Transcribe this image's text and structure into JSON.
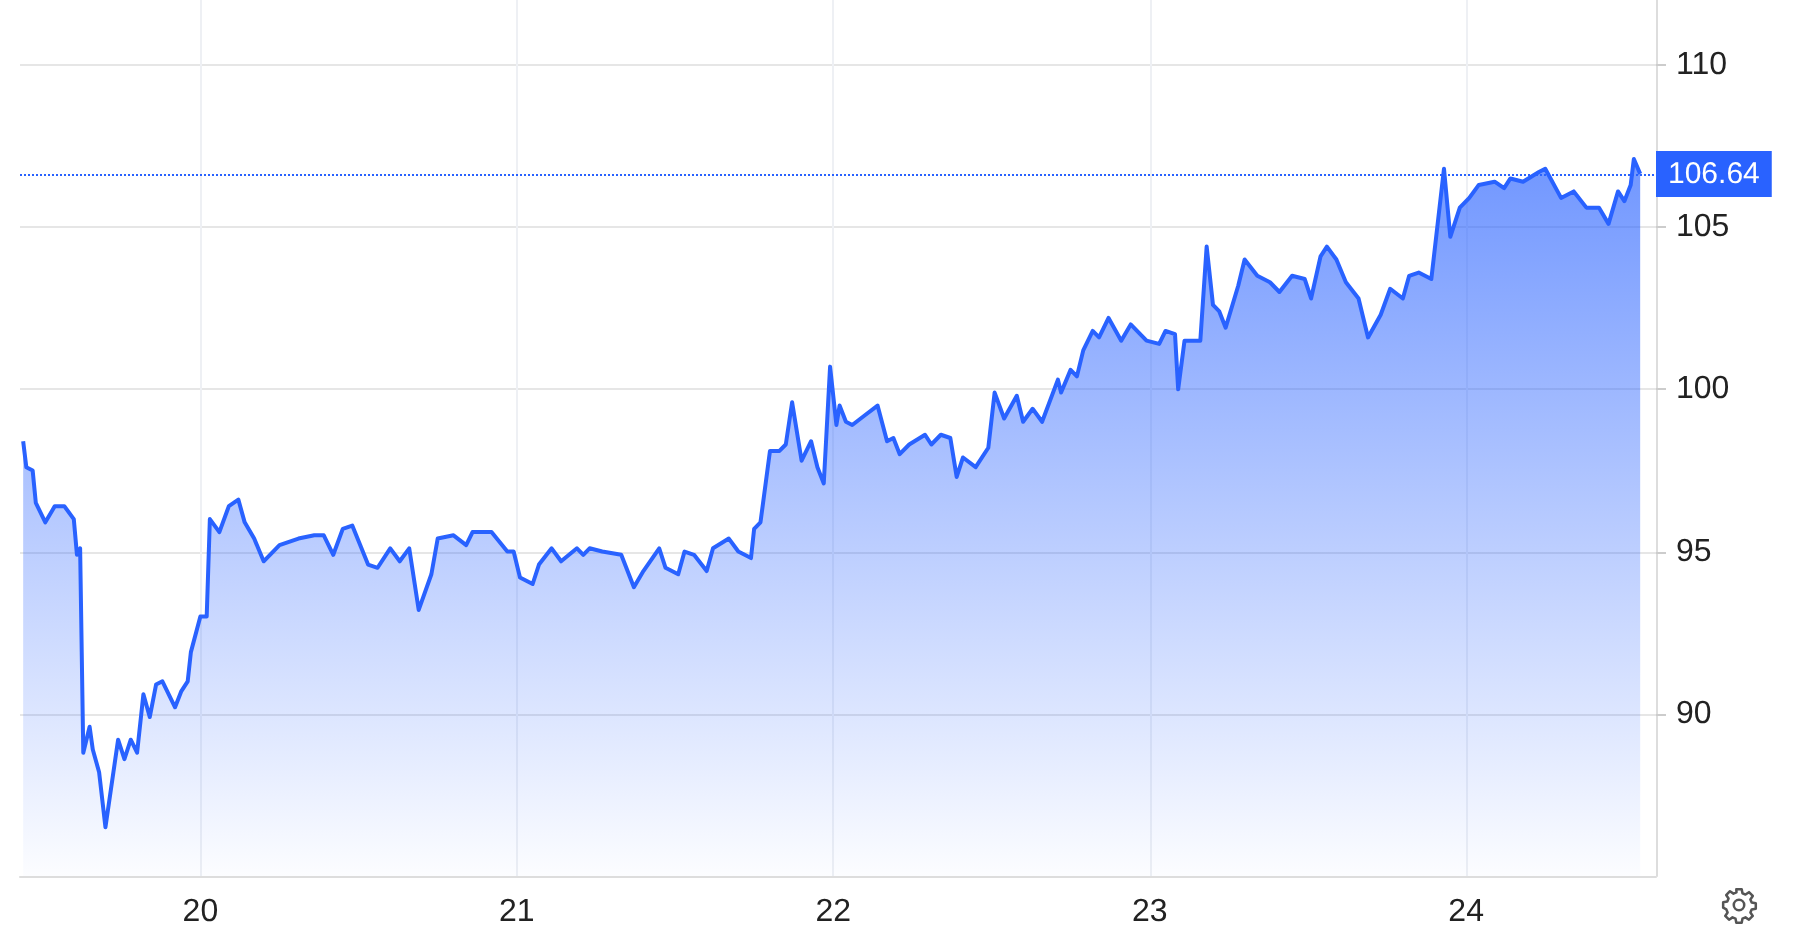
{
  "chart_data": {
    "type": "area",
    "color": "#2962ff",
    "marker": "none",
    "line_style": "solid",
    "grid": true,
    "x": [
      19.44,
      19.45,
      19.47,
      19.48,
      19.51,
      19.54,
      19.57,
      19.6,
      19.61,
      19.62,
      19.63,
      19.65,
      19.66,
      19.68,
      19.7,
      19.74,
      19.76,
      19.78,
      19.8,
      19.82,
      19.84,
      19.86,
      19.88,
      19.92,
      19.94,
      19.96,
      19.97,
      20.0,
      20.02,
      20.03,
      20.06,
      20.09,
      20.12,
      20.14,
      20.17,
      20.2,
      20.25,
      20.31,
      20.36,
      20.39,
      20.42,
      20.45,
      20.48,
      20.53,
      20.56,
      20.6,
      20.63,
      20.66,
      20.69,
      20.73,
      20.75,
      20.8,
      20.84,
      20.86,
      20.92,
      20.97,
      20.99,
      21.01,
      21.05,
      21.07,
      21.11,
      21.14,
      21.19,
      21.21,
      21.23,
      21.27,
      21.33,
      21.37,
      21.4,
      21.45,
      21.47,
      21.51,
      21.53,
      21.56,
      21.6,
      21.62,
      21.67,
      21.7,
      21.74,
      21.75,
      21.77,
      21.8,
      21.83,
      21.85,
      21.87,
      21.9,
      21.93,
      21.95,
      21.97,
      21.99,
      22.01,
      22.02,
      22.04,
      22.06,
      22.1,
      22.14,
      22.17,
      22.19,
      22.21,
      22.24,
      22.29,
      22.31,
      22.34,
      22.37,
      22.39,
      22.41,
      22.45,
      22.49,
      22.51,
      22.54,
      22.58,
      22.6,
      22.63,
      22.66,
      22.71,
      22.72,
      22.75,
      22.77,
      22.79,
      22.82,
      22.84,
      22.87,
      22.91,
      22.94,
      22.99,
      23.03,
      23.05,
      23.08,
      23.09,
      23.11,
      23.16,
      23.18,
      23.2,
      23.22,
      23.24,
      23.28,
      23.3,
      23.34,
      23.38,
      23.41,
      23.45,
      23.49,
      23.51,
      23.54,
      23.56,
      23.59,
      23.62,
      23.66,
      23.69,
      23.73,
      23.76,
      23.8,
      23.82,
      23.85,
      23.89,
      23.93,
      23.95,
      23.98,
      24.01,
      24.04,
      24.09,
      24.12,
      24.14,
      24.18,
      24.23,
      24.25,
      24.3,
      24.34,
      24.38,
      24.42,
      24.45,
      24.48,
      24.5,
      24.52,
      24.53,
      24.55
    ],
    "values": [
      98.4,
      97.6,
      97.5,
      96.5,
      95.9,
      96.4,
      96.4,
      96.0,
      94.9,
      95.1,
      88.8,
      89.6,
      88.9,
      88.2,
      86.5,
      89.2,
      88.6,
      89.2,
      88.8,
      90.6,
      89.9,
      90.9,
      91.0,
      90.2,
      90.7,
      91.0,
      91.9,
      93.0,
      93.0,
      96.0,
      95.6,
      96.4,
      96.6,
      95.9,
      95.4,
      94.7,
      95.2,
      95.4,
      95.5,
      95.5,
      94.9,
      95.7,
      95.8,
      94.6,
      94.5,
      95.1,
      94.7,
      95.1,
      93.2,
      94.3,
      95.4,
      95.5,
      95.2,
      95.6,
      95.6,
      95.0,
      95.0,
      94.2,
      94.0,
      94.6,
      95.1,
      94.7,
      95.1,
      94.9,
      95.1,
      95.0,
      94.9,
      93.9,
      94.4,
      95.1,
      94.5,
      94.3,
      95.0,
      94.9,
      94.4,
      95.1,
      95.4,
      95.0,
      94.8,
      95.7,
      95.9,
      98.1,
      98.1,
      98.3,
      99.6,
      97.8,
      98.4,
      97.6,
      97.1,
      100.7,
      98.9,
      99.5,
      99.0,
      98.9,
      99.2,
      99.5,
      98.4,
      98.5,
      98.0,
      98.3,
      98.6,
      98.3,
      98.6,
      98.5,
      97.3,
      97.9,
      97.6,
      98.2,
      99.9,
      99.1,
      99.8,
      99.0,
      99.4,
      99.0,
      100.3,
      99.9,
      100.6,
      100.4,
      101.2,
      101.8,
      101.6,
      102.2,
      101.5,
      102.0,
      101.5,
      101.4,
      101.8,
      101.7,
      100.0,
      101.5,
      101.5,
      104.4,
      102.6,
      102.4,
      101.9,
      103.2,
      104.0,
      103.5,
      103.3,
      103.0,
      103.5,
      103.4,
      102.8,
      104.1,
      104.4,
      104.0,
      103.3,
      102.8,
      101.6,
      102.3,
      103.1,
      102.8,
      103.5,
      103.6,
      103.4,
      106.8,
      104.7,
      105.6,
      105.9,
      106.3,
      106.4,
      106.2,
      106.5,
      106.4,
      106.7,
      106.8,
      105.9,
      106.1,
      105.6,
      105.6,
      105.1,
      106.1,
      105.8,
      106.3,
      107.1,
      106.64
    ],
    "xlim": [
      19.43,
      24.6
    ],
    "xticks": [
      20,
      21,
      22,
      23,
      24
    ],
    "ylim": [
      85,
      112
    ],
    "yticks": [
      90,
      95,
      100,
      105,
      110
    ],
    "ref_lines": [
      {
        "axis": "y",
        "value": 106.64,
        "label": "106.64",
        "color": "#2962ff",
        "line_style": "dotted"
      }
    ]
  }
}
